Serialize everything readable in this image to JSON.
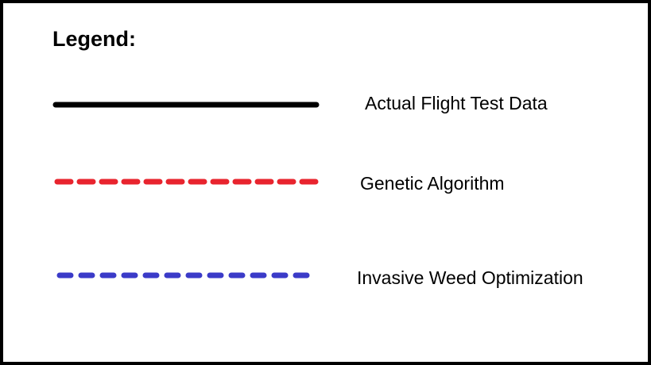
{
  "legend": {
    "title": "Legend:",
    "entries": [
      {
        "label": "Actual Flight Test Data",
        "color": "#000000",
        "style": "solid"
      },
      {
        "label": "Genetic Algorithm",
        "color": "#e8242e",
        "style": "dashed"
      },
      {
        "label": "Invasive Weed Optimization",
        "color": "#3b3bc8",
        "style": "dashed"
      }
    ]
  }
}
